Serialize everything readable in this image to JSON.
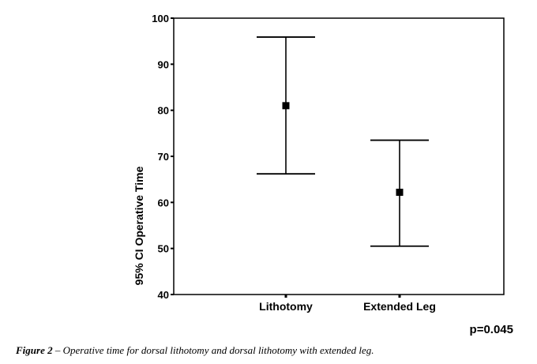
{
  "chart_data": {
    "type": "errorbar",
    "categories": [
      "Lithotomy",
      "Extended Leg"
    ],
    "means": [
      81,
      62.2
    ],
    "upper": [
      95.9,
      73.5
    ],
    "lower": [
      66.2,
      50.5
    ],
    "ylabel": "95% CI Operative Time",
    "ylim": [
      40,
      100
    ],
    "yticks": [
      "40",
      "50",
      "60",
      "70",
      "80",
      "90",
      "100"
    ],
    "annotation": "p=0.045"
  },
  "caption": {
    "label": "Figure 2",
    "text": " – Operative time for dorsal lithotomy and dorsal lithotomy with extended leg."
  }
}
